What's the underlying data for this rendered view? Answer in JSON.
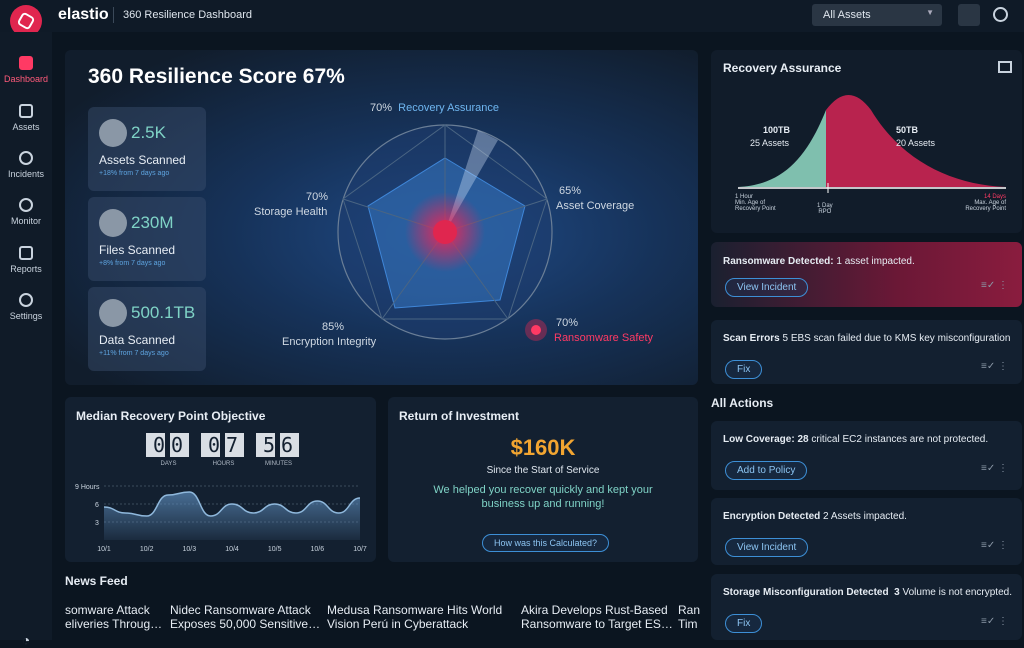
{
  "header": {
    "brand": "elastio",
    "title": "360 Resilience Dashboard",
    "asset_select": "All Assets"
  },
  "sidebar": [
    "Dashboard",
    "Assets",
    "Incidents",
    "Monitor",
    "Reports",
    "Settings"
  ],
  "score": {
    "title": "360 Resilience Score 67%",
    "stats": [
      {
        "value": "2.5K",
        "label": "Assets Scanned",
        "note": "+18% from 7 days ago"
      },
      {
        "value": "230M",
        "label": "Files Scanned",
        "note": "+8% from 7 days ago"
      },
      {
        "value": "500.1TB",
        "label": "Data Scanned",
        "note": "+11% from 7 days ago"
      }
    ],
    "radar": [
      {
        "pct": "70%",
        "label": "Recovery Assurance"
      },
      {
        "pct": "65%",
        "label": "Asset Coverage"
      },
      {
        "pct": "70%",
        "label": "Ransomware Safety"
      },
      {
        "pct": "85%",
        "label": "Encryption Integrity"
      },
      {
        "pct": "70%",
        "label": "Storage Health"
      }
    ]
  },
  "recovery": {
    "title": "Recovery Assurance",
    "left_size": "100TB",
    "left_assets": "25 Assets",
    "right_size": "50TB",
    "right_assets": "20 Assets",
    "axis": [
      {
        "top": "1 Hour",
        "bottom": "Min. Age of Recovery Point"
      },
      {
        "top": "1 Day",
        "bottom": "RPO"
      },
      {
        "top": "14 Days",
        "bottom": "Max. Age of Recovery Point"
      }
    ]
  },
  "alerts": [
    {
      "title": "Ransomware Detected:",
      "text": " 1 asset impacted.",
      "button": "View Incident"
    },
    {
      "title": "Scan Errors",
      "text": " 5 EBS scan failed due to KMS key misconfiguration",
      "button": "Fix"
    }
  ],
  "actions": {
    "title": "All Actions",
    "items": [
      {
        "title": "Low Coverage:",
        "count": "28",
        "text": " critical EC2 instances are not protected.",
        "button": "Add to Policy"
      },
      {
        "title": "Encryption Detected",
        "count": "",
        "text": " 2 Assets impacted.",
        "button": "View Incident"
      },
      {
        "title": "Storage Misconfiguration Detected",
        "count": "3",
        "text": " Volume is not encrypted.",
        "button": "Fix"
      }
    ]
  },
  "rpo": {
    "title": "Median Recovery Point Objective",
    "digits": [
      {
        "value": "00",
        "unit": "DAYS"
      },
      {
        "value": "07",
        "unit": "HOURS"
      },
      {
        "value": "56",
        "unit": "MINUTES"
      }
    ]
  },
  "rpo_chart": {
    "type": "line",
    "categories": [
      "10/1",
      null,
      "10/2",
      null,
      "10/3",
      null,
      "10/4",
      null,
      "10/5",
      null,
      "10/6",
      null,
      "10/7"
    ],
    "values": [
      5.5,
      4.5,
      4,
      7.5,
      8,
      4,
      6,
      4.5,
      6,
      4.5,
      6.5,
      4.5,
      7
    ],
    "color": "#8fb8dc",
    "ylim": [
      0,
      10
    ],
    "yticks": [
      {
        "value": 9,
        "label": "9 Hours"
      },
      6,
      3
    ],
    "grid": true
  },
  "roi": {
    "title": "Return of Investment",
    "amount": "$160K",
    "since": "Since the Start of Service",
    "message": "We helped you recover quickly and kept your business up and running!",
    "button": "How was this Calculated?"
  },
  "news": {
    "title": "News Feed",
    "items": [
      [
        "somware Attack",
        "eliveries Throug…"
      ],
      [
        "Nidec Ransomware Attack",
        "Exposes 50,000 Sensitive…"
      ],
      [
        "Medusa Ransomware Hits World",
        "Vision Perú in Cyberattack"
      ],
      [
        "Akira Develops Rust-Based",
        "Ransomware to Target ES…"
      ],
      [
        "Ran",
        "Tim"
      ]
    ]
  }
}
